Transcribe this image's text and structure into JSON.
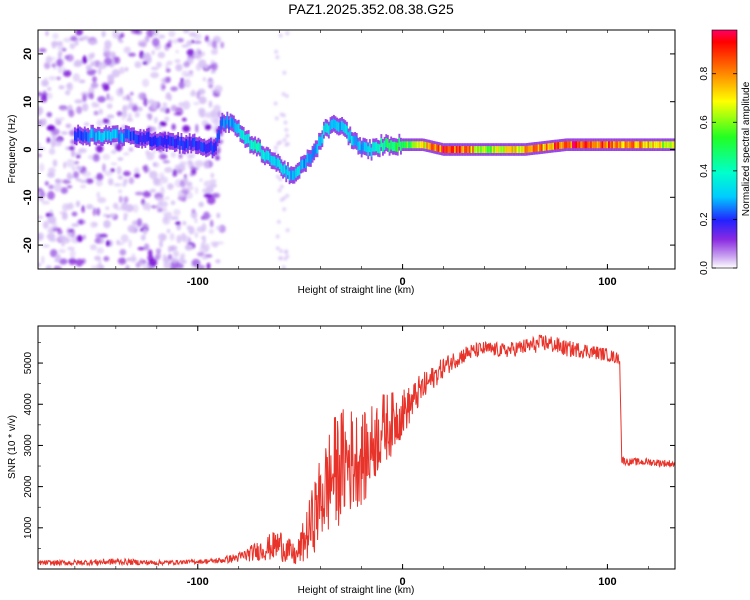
{
  "title": "PAZ1.2025.352.08.38.G25",
  "colors": {
    "line": "#e8332a",
    "text": "#000000"
  },
  "colorbar": {
    "label": "Normalized spectral amplitude",
    "ticks": [
      "0.0",
      "0.2",
      "0.4",
      "0.6",
      "0.8"
    ],
    "tick_values": [
      0.0,
      0.2,
      0.4,
      0.6,
      0.8
    ],
    "range": [
      0,
      0.98
    ]
  },
  "chart_data": [
    {
      "type": "heatmap",
      "title": "PAZ1.2025.352.08.38.G25",
      "xlabel": "Height of straight line (km)",
      "ylabel": "Frequency (Hz)",
      "xlim": [
        -178,
        133
      ],
      "ylim": [
        -25,
        25
      ],
      "xticks": [
        "-100",
        "0",
        "100"
      ],
      "xtick_values": [
        -100,
        0,
        100
      ],
      "yticks": [
        "20",
        "10",
        "0",
        "-10",
        "-20"
      ],
      "ytick_values": [
        20,
        10,
        0,
        -10,
        -20
      ],
      "ridge": {
        "x": [
          -160,
          -150,
          -140,
          -130,
          -120,
          -110,
          -100,
          -92,
          -88,
          -82,
          -76,
          -70,
          -64,
          -58,
          -54,
          -50,
          -46,
          -42,
          -38,
          -34,
          -30,
          -26,
          -22,
          -18,
          -14,
          -10,
          -6,
          -2,
          0,
          10,
          20,
          30,
          40,
          50,
          60,
          70,
          80,
          90,
          100,
          110,
          120,
          133
        ],
        "y": [
          3,
          3,
          3,
          2.5,
          2,
          1.5,
          1,
          0,
          6,
          5,
          2,
          0,
          -2,
          -4,
          -6,
          -4,
          -2,
          0,
          4,
          5,
          5,
          3,
          1,
          0,
          0,
          1,
          1,
          1,
          1,
          1,
          0,
          0,
          0,
          0,
          0,
          0.5,
          1,
          1,
          1,
          1,
          1,
          1
        ],
        "amplitude": [
          0.2,
          0.3,
          0.3,
          0.2,
          0.2,
          0.2,
          0.2,
          0.2,
          0.25,
          0.3,
          0.35,
          0.4,
          0.3,
          0.35,
          0.3,
          0.3,
          0.25,
          0.3,
          0.35,
          0.3,
          0.3,
          0.35,
          0.3,
          0.3,
          0.4,
          0.4,
          0.5,
          0.5,
          0.5,
          0.7,
          0.9,
          0.85,
          0.6,
          0.7,
          0.75,
          0.8,
          0.9,
          0.9,
          0.85,
          0.8,
          0.75,
          0.6
        ]
      },
      "noise_region": [
        -178,
        -88
      ]
    },
    {
      "type": "line",
      "xlabel": "Height of straight line (km)",
      "ylabel": "SNR (10 * v/v)",
      "xlim": [
        -178,
        133
      ],
      "ylim": [
        0,
        5900
      ],
      "xticks": [
        "-100",
        "0",
        "100"
      ],
      "xtick_values": [
        -100,
        0,
        100
      ],
      "yticks": [
        "1000",
        "2000",
        "3000",
        "4000",
        "5000"
      ],
      "ytick_values": [
        1000,
        2000,
        3000,
        4000,
        5000
      ],
      "series": [
        {
          "name": "SNR",
          "x": [
            -178,
            -160,
            -140,
            -120,
            -100,
            -90,
            -80,
            -70,
            -60,
            -52,
            -46,
            -40,
            -34,
            -28,
            -22,
            -18,
            -14,
            -10,
            -6,
            -2,
            0,
            4,
            8,
            14,
            20,
            26,
            32,
            40,
            50,
            60,
            70,
            80,
            90,
            100,
            106,
            107,
            110,
            120,
            133
          ],
          "values": [
            150,
            150,
            180,
            150,
            180,
            200,
            280,
            450,
            600,
            300,
            900,
            1700,
            2300,
            2600,
            2700,
            2700,
            3100,
            3400,
            3500,
            3700,
            3800,
            4000,
            4300,
            4600,
            4900,
            5100,
            5250,
            5350,
            5300,
            5400,
            5500,
            5350,
            5300,
            5200,
            5100,
            2650,
            2600,
            2600,
            2550
          ],
          "spread": [
            60,
            70,
            80,
            60,
            50,
            70,
            120,
            250,
            400,
            250,
            700,
            1100,
            1400,
            1400,
            1200,
            1100,
            1000,
            900,
            800,
            650,
            600,
            450,
            400,
            300,
            250,
            220,
            200,
            180,
            180,
            200,
            220,
            200,
            180,
            160,
            140,
            100,
            90,
            90,
            90
          ]
        }
      ]
    }
  ]
}
